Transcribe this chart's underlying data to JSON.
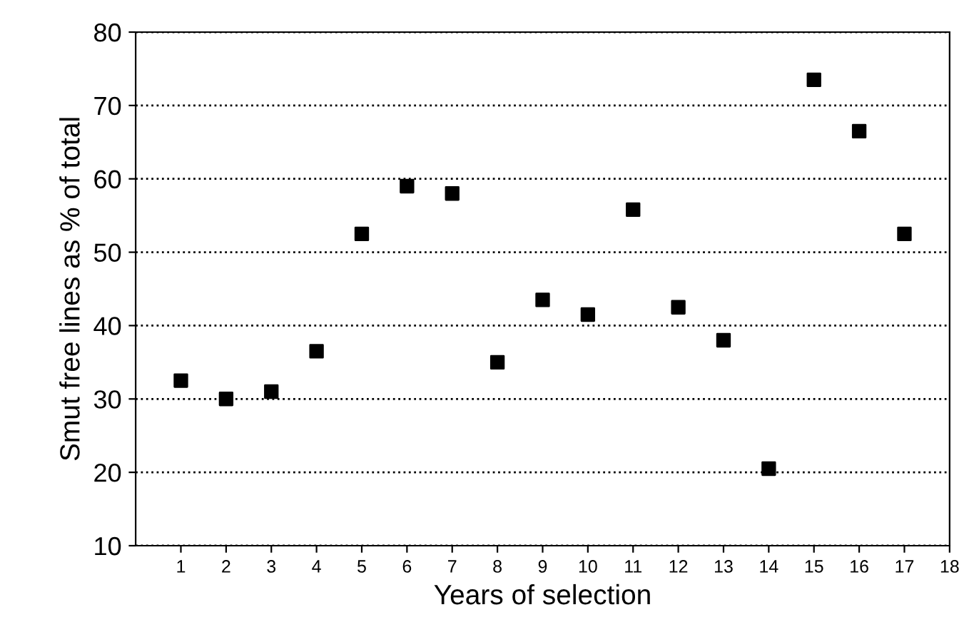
{
  "chart_data": {
    "type": "scatter",
    "xlabel": "Years of selection",
    "ylabel": "Smut free lines as % of total",
    "x": [
      1,
      2,
      3,
      4,
      5,
      6,
      7,
      8,
      9,
      10,
      11,
      12,
      13,
      14,
      15,
      16,
      17
    ],
    "series": [
      {
        "color": "#000000",
        "values": [
          32.5,
          30,
          31,
          36.5,
          52.5,
          59,
          58,
          35,
          43.5,
          41.5,
          55.8,
          42.5,
          38,
          20.5,
          73.5,
          66.5,
          52.5
        ]
      }
    ],
    "xlim": [
      0,
      18
    ],
    "xticks": [
      1,
      2,
      3,
      4,
      5,
      6,
      7,
      8,
      9,
      10,
      11,
      12,
      13,
      14,
      15,
      16,
      17,
      18
    ],
    "ylim": [
      10,
      80
    ],
    "yticks": [
      10,
      20,
      30,
      40,
      50,
      60,
      70,
      80
    ],
    "grid": "y",
    "marker": "square",
    "legend": false
  }
}
